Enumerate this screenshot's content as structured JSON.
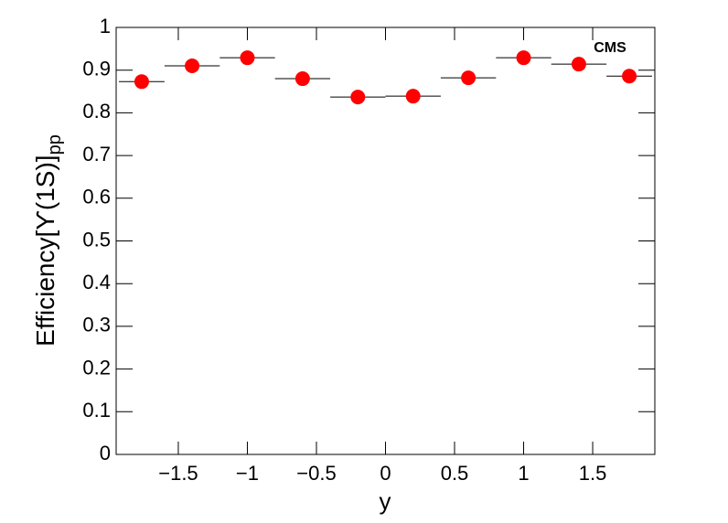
{
  "chart_data": {
    "type": "scatter",
    "xlabel": "y",
    "ylabel": "Efficiency[ϒ(1S)]",
    "ylabel_subscript": "pp",
    "annotation": "CMS",
    "series": [
      {
        "color": "#ff0000",
        "x": [
          -1.765,
          -1.4,
          -1.0,
          -0.6,
          -0.2,
          0.2,
          0.6,
          1.0,
          1.4,
          1.765
        ],
        "xerr": [
          0.165,
          0.2,
          0.2,
          0.2,
          0.2,
          0.2,
          0.2,
          0.2,
          0.2,
          0.165
        ],
        "values": [
          0.873,
          0.91,
          0.929,
          0.88,
          0.837,
          0.839,
          0.882,
          0.929,
          0.914,
          0.886
        ]
      }
    ],
    "xlim": [
      -1.95,
      1.95
    ],
    "ylim": [
      0,
      1
    ],
    "xticks": [
      {
        "value": -1.5,
        "label": "−1.5"
      },
      {
        "value": -1,
        "label": "−1"
      },
      {
        "value": -0.5,
        "label": "−0.5"
      },
      0,
      0.5,
      1,
      1.5
    ],
    "yticks": [
      0,
      0.1,
      0.2,
      0.3,
      0.4,
      0.5,
      0.6,
      0.7,
      0.8,
      0.9,
      1
    ]
  }
}
